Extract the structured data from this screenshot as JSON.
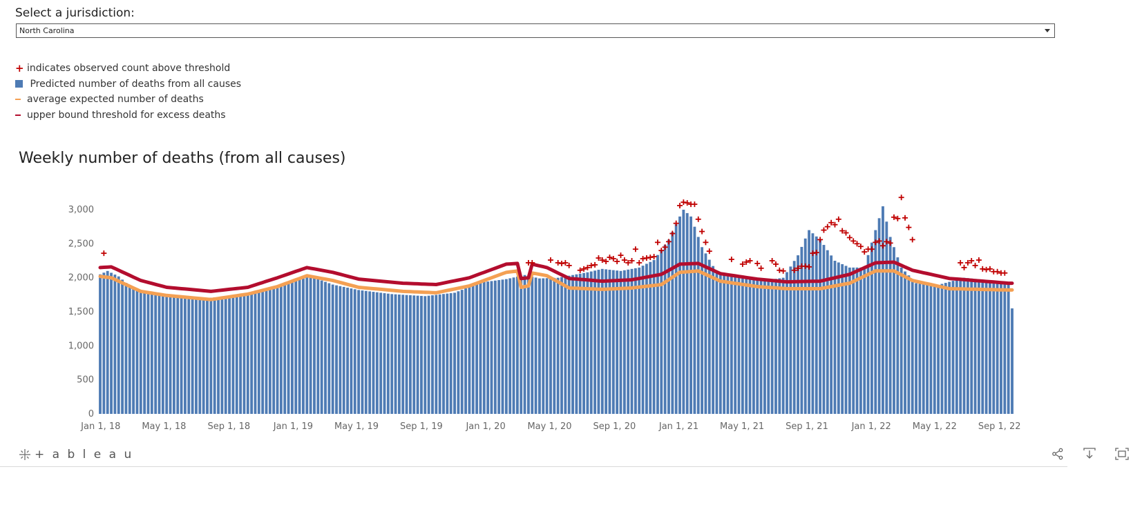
{
  "selector": {
    "label": "Select a jurisdiction:",
    "value": "North Carolina"
  },
  "legend": [
    {
      "icon": "plus-icon",
      "text": "indicates observed count above threshold"
    },
    {
      "icon": "square-icon",
      "text": " Predicted number of deaths from all causes"
    },
    {
      "icon": "orange-dash-icon",
      "text": "average expected number of deaths"
    },
    {
      "icon": "red-dash-icon",
      "text": "upper bound threshold for excess deaths"
    }
  ],
  "colors": {
    "bar": "#4e7bb4",
    "expected": "#f4a053",
    "threshold": "#b30d2e",
    "plus": "#c00000"
  },
  "footer": {
    "brand": "+ a b l e a u",
    "icons": [
      "share-icon",
      "download-icon",
      "fullscreen-icon"
    ]
  },
  "chart_data": {
    "type": "bar",
    "title": "Weekly number of deaths (from all causes)",
    "xlabel": "",
    "ylabel": "",
    "ylim": [
      0,
      3000
    ],
    "yticks": [
      0,
      500,
      1000,
      1500,
      2000,
      2500,
      3000
    ],
    "ytick_labels": [
      "0",
      "500",
      "1,000",
      "1,500",
      "2,000",
      "2,500",
      "3,000"
    ],
    "x_start": "2017-12-31",
    "x_end": "2022-09-25",
    "xtick_dates": [
      "2018-01-01",
      "2018-05-01",
      "2018-09-01",
      "2019-01-01",
      "2019-05-01",
      "2019-09-01",
      "2020-01-01",
      "2020-05-01",
      "2020-09-01",
      "2021-01-01",
      "2021-05-01",
      "2021-09-01",
      "2022-01-01",
      "2022-05-01",
      "2022-09-01"
    ],
    "xtick_labels": [
      "Jan 1, 18",
      "May 1, 18",
      "Sep 1, 18",
      "Jan 1, 19",
      "May 1, 19",
      "Sep 1, 19",
      "Jan 1, 20",
      "May 1, 20",
      "Sep 1, 20",
      "Jan 1, 21",
      "May 1, 21",
      "Sep 1, 21",
      "Jan 1, 22",
      "May 1, 22",
      "Sep 1, 22"
    ],
    "series": [
      {
        "name": "Predicted number of deaths from all causes",
        "kind": "bars",
        "knots": [
          [
            "2017-12-31",
            2050
          ],
          [
            "2018-01-14",
            2100
          ],
          [
            "2018-02-04",
            2020
          ],
          [
            "2018-03-04",
            1830
          ],
          [
            "2018-04-01",
            1760
          ],
          [
            "2018-05-06",
            1740
          ],
          [
            "2018-07-01",
            1690
          ],
          [
            "2018-08-19",
            1720
          ],
          [
            "2018-10-07",
            1760
          ],
          [
            "2018-11-18",
            1850
          ],
          [
            "2019-01-06",
            1960
          ],
          [
            "2019-02-03",
            2020
          ],
          [
            "2019-03-17",
            1900
          ],
          [
            "2019-05-05",
            1820
          ],
          [
            "2019-07-07",
            1760
          ],
          [
            "2019-09-08",
            1730
          ],
          [
            "2019-11-03",
            1780
          ],
          [
            "2019-12-22",
            1930
          ],
          [
            "2020-02-09",
            1980
          ],
          [
            "2020-03-15",
            2040
          ],
          [
            "2020-04-12",
            1990
          ],
          [
            "2020-05-17",
            2000
          ],
          [
            "2020-07-12",
            2080
          ],
          [
            "2020-08-09",
            2130
          ],
          [
            "2020-09-13",
            2100
          ],
          [
            "2020-10-18",
            2150
          ],
          [
            "2020-11-15",
            2260
          ],
          [
            "2020-12-13",
            2560
          ],
          [
            "2021-01-03",
            2900
          ],
          [
            "2021-01-10",
            3000
          ],
          [
            "2021-01-24",
            2900
          ],
          [
            "2021-02-14",
            2450
          ],
          [
            "2021-03-14",
            2080
          ],
          [
            "2021-05-02",
            1990
          ],
          [
            "2021-06-13",
            1960
          ],
          [
            "2021-07-18",
            2000
          ],
          [
            "2021-08-15",
            2330
          ],
          [
            "2021-09-05",
            2700
          ],
          [
            "2021-09-26",
            2560
          ],
          [
            "2021-10-24",
            2250
          ],
          [
            "2021-11-21",
            2150
          ],
          [
            "2021-12-19",
            2150
          ],
          [
            "2022-01-09",
            2700
          ],
          [
            "2022-01-23",
            3050
          ],
          [
            "2022-02-06",
            2600
          ],
          [
            "2022-02-27",
            2150
          ],
          [
            "2022-03-27",
            1920
          ],
          [
            "2022-05-01",
            1880
          ],
          [
            "2022-06-26",
            2000
          ],
          [
            "2022-08-14",
            1960
          ],
          [
            "2022-09-18",
            1900
          ],
          [
            "2022-09-25",
            1550
          ]
        ]
      },
      {
        "name": "average expected number of deaths",
        "kind": "line",
        "knots": [
          [
            "2017-12-31",
            2020
          ],
          [
            "2018-01-21",
            2000
          ],
          [
            "2018-03-18",
            1800
          ],
          [
            "2018-05-06",
            1740
          ],
          [
            "2018-07-29",
            1680
          ],
          [
            "2018-10-07",
            1760
          ],
          [
            "2018-12-02",
            1870
          ],
          [
            "2019-01-27",
            2030
          ],
          [
            "2019-03-17",
            1960
          ],
          [
            "2019-05-05",
            1860
          ],
          [
            "2019-07-28",
            1800
          ],
          [
            "2019-09-29",
            1780
          ],
          [
            "2019-12-01",
            1880
          ],
          [
            "2020-02-09",
            2080
          ],
          [
            "2020-03-01",
            2100
          ],
          [
            "2020-03-08",
            1860
          ],
          [
            "2020-03-22",
            1880
          ],
          [
            "2020-03-29",
            2070
          ],
          [
            "2020-04-26",
            2030
          ],
          [
            "2020-06-07",
            1850
          ],
          [
            "2020-08-09",
            1830
          ],
          [
            "2020-10-04",
            1850
          ],
          [
            "2020-11-29",
            1900
          ],
          [
            "2021-01-03",
            2080
          ],
          [
            "2021-02-07",
            2100
          ],
          [
            "2021-03-21",
            1950
          ],
          [
            "2021-05-30",
            1870
          ],
          [
            "2021-07-25",
            1840
          ],
          [
            "2021-09-26",
            1840
          ],
          [
            "2021-11-21",
            1920
          ],
          [
            "2022-01-09",
            2100
          ],
          [
            "2022-02-13",
            2100
          ],
          [
            "2022-03-20",
            1960
          ],
          [
            "2022-05-29",
            1840
          ],
          [
            "2022-09-18",
            1820
          ]
        ]
      },
      {
        "name": "upper bound threshold for excess deaths",
        "kind": "line",
        "knots": [
          [
            "2017-12-31",
            2150
          ],
          [
            "2018-01-21",
            2160
          ],
          [
            "2018-03-18",
            1960
          ],
          [
            "2018-05-06",
            1860
          ],
          [
            "2018-07-29",
            1800
          ],
          [
            "2018-10-07",
            1860
          ],
          [
            "2018-12-02",
            2000
          ],
          [
            "2019-01-27",
            2150
          ],
          [
            "2019-03-17",
            2080
          ],
          [
            "2019-05-05",
            1980
          ],
          [
            "2019-07-28",
            1920
          ],
          [
            "2019-09-29",
            1900
          ],
          [
            "2019-12-01",
            2000
          ],
          [
            "2020-02-09",
            2200
          ],
          [
            "2020-03-01",
            2210
          ],
          [
            "2020-03-08",
            1990
          ],
          [
            "2020-03-22",
            2000
          ],
          [
            "2020-03-29",
            2200
          ],
          [
            "2020-04-26",
            2150
          ],
          [
            "2020-06-07",
            1990
          ],
          [
            "2020-08-09",
            1950
          ],
          [
            "2020-10-04",
            1970
          ],
          [
            "2020-11-29",
            2050
          ],
          [
            "2021-01-03",
            2200
          ],
          [
            "2021-02-07",
            2210
          ],
          [
            "2021-03-21",
            2060
          ],
          [
            "2021-05-30",
            1980
          ],
          [
            "2021-07-25",
            1940
          ],
          [
            "2021-09-26",
            1950
          ],
          [
            "2021-11-21",
            2050
          ],
          [
            "2022-01-09",
            2220
          ],
          [
            "2022-02-13",
            2230
          ],
          [
            "2022-03-20",
            2110
          ],
          [
            "2022-05-29",
            1990
          ],
          [
            "2022-09-18",
            1920
          ]
        ]
      },
      {
        "name": "observed count above threshold",
        "kind": "markers",
        "points": [
          [
            "2018-01-07",
            2360
          ],
          [
            "2020-03-22",
            2220
          ],
          [
            "2020-03-29",
            2220
          ],
          [
            "2020-05-03",
            2260
          ],
          [
            "2020-05-17",
            2220
          ],
          [
            "2020-05-24",
            2210
          ],
          [
            "2020-05-31",
            2220
          ],
          [
            "2020-06-07",
            2180
          ],
          [
            "2020-06-28",
            2110
          ],
          [
            "2020-07-05",
            2130
          ],
          [
            "2020-07-12",
            2150
          ],
          [
            "2020-07-19",
            2180
          ],
          [
            "2020-07-26",
            2190
          ],
          [
            "2020-08-02",
            2290
          ],
          [
            "2020-08-09",
            2260
          ],
          [
            "2020-08-16",
            2240
          ],
          [
            "2020-08-23",
            2300
          ],
          [
            "2020-08-30",
            2280
          ],
          [
            "2020-09-06",
            2240
          ],
          [
            "2020-09-13",
            2330
          ],
          [
            "2020-09-20",
            2260
          ],
          [
            "2020-09-27",
            2220
          ],
          [
            "2020-10-04",
            2250
          ],
          [
            "2020-10-11",
            2420
          ],
          [
            "2020-10-18",
            2220
          ],
          [
            "2020-10-25",
            2280
          ],
          [
            "2020-11-01",
            2290
          ],
          [
            "2020-11-08",
            2300
          ],
          [
            "2020-11-15",
            2310
          ],
          [
            "2020-11-22",
            2520
          ],
          [
            "2020-11-29",
            2400
          ],
          [
            "2020-12-06",
            2450
          ],
          [
            "2020-12-13",
            2530
          ],
          [
            "2020-12-20",
            2650
          ],
          [
            "2020-12-27",
            2800
          ],
          [
            "2021-01-03",
            3060
          ],
          [
            "2021-01-10",
            3110
          ],
          [
            "2021-01-17",
            3100
          ],
          [
            "2021-01-24",
            3080
          ],
          [
            "2021-01-31",
            3080
          ],
          [
            "2021-02-07",
            2860
          ],
          [
            "2021-02-14",
            2680
          ],
          [
            "2021-02-21",
            2520
          ],
          [
            "2021-02-28",
            2390
          ],
          [
            "2021-04-11",
            2270
          ],
          [
            "2021-05-02",
            2200
          ],
          [
            "2021-05-09",
            2230
          ],
          [
            "2021-05-16",
            2250
          ],
          [
            "2021-05-30",
            2210
          ],
          [
            "2021-06-06",
            2140
          ],
          [
            "2021-06-27",
            2250
          ],
          [
            "2021-07-04",
            2200
          ],
          [
            "2021-07-11",
            2110
          ],
          [
            "2021-07-18",
            2100
          ],
          [
            "2021-08-08",
            2110
          ],
          [
            "2021-08-15",
            2140
          ],
          [
            "2021-08-22",
            2170
          ],
          [
            "2021-08-29",
            2170
          ],
          [
            "2021-09-05",
            2160
          ],
          [
            "2021-09-12",
            2360
          ],
          [
            "2021-09-19",
            2370
          ],
          [
            "2021-09-26",
            2560
          ],
          [
            "2021-10-03",
            2700
          ],
          [
            "2021-10-10",
            2750
          ],
          [
            "2021-10-17",
            2810
          ],
          [
            "2021-10-24",
            2780
          ],
          [
            "2021-10-31",
            2860
          ],
          [
            "2021-11-07",
            2690
          ],
          [
            "2021-11-14",
            2660
          ],
          [
            "2021-11-21",
            2590
          ],
          [
            "2021-11-28",
            2540
          ],
          [
            "2021-12-05",
            2500
          ],
          [
            "2021-12-12",
            2460
          ],
          [
            "2021-12-19",
            2380
          ],
          [
            "2021-12-26",
            2420
          ],
          [
            "2022-01-02",
            2420
          ],
          [
            "2022-01-09",
            2520
          ],
          [
            "2022-01-16",
            2540
          ],
          [
            "2022-01-23",
            2470
          ],
          [
            "2022-01-30",
            2530
          ],
          [
            "2022-02-06",
            2510
          ],
          [
            "2022-02-13",
            2890
          ],
          [
            "2022-02-20",
            2870
          ],
          [
            "2022-02-27",
            3180
          ],
          [
            "2022-03-06",
            2880
          ],
          [
            "2022-03-13",
            2740
          ],
          [
            "2022-03-20",
            2560
          ],
          [
            "2022-06-19",
            2220
          ],
          [
            "2022-06-26",
            2150
          ],
          [
            "2022-07-03",
            2220
          ],
          [
            "2022-07-10",
            2250
          ],
          [
            "2022-07-17",
            2180
          ],
          [
            "2022-07-24",
            2260
          ],
          [
            "2022-07-31",
            2130
          ],
          [
            "2022-08-07",
            2120
          ],
          [
            "2022-08-14",
            2130
          ],
          [
            "2022-08-21",
            2090
          ],
          [
            "2022-08-28",
            2090
          ],
          [
            "2022-09-04",
            2070
          ],
          [
            "2022-09-11",
            2070
          ]
        ]
      }
    ]
  }
}
